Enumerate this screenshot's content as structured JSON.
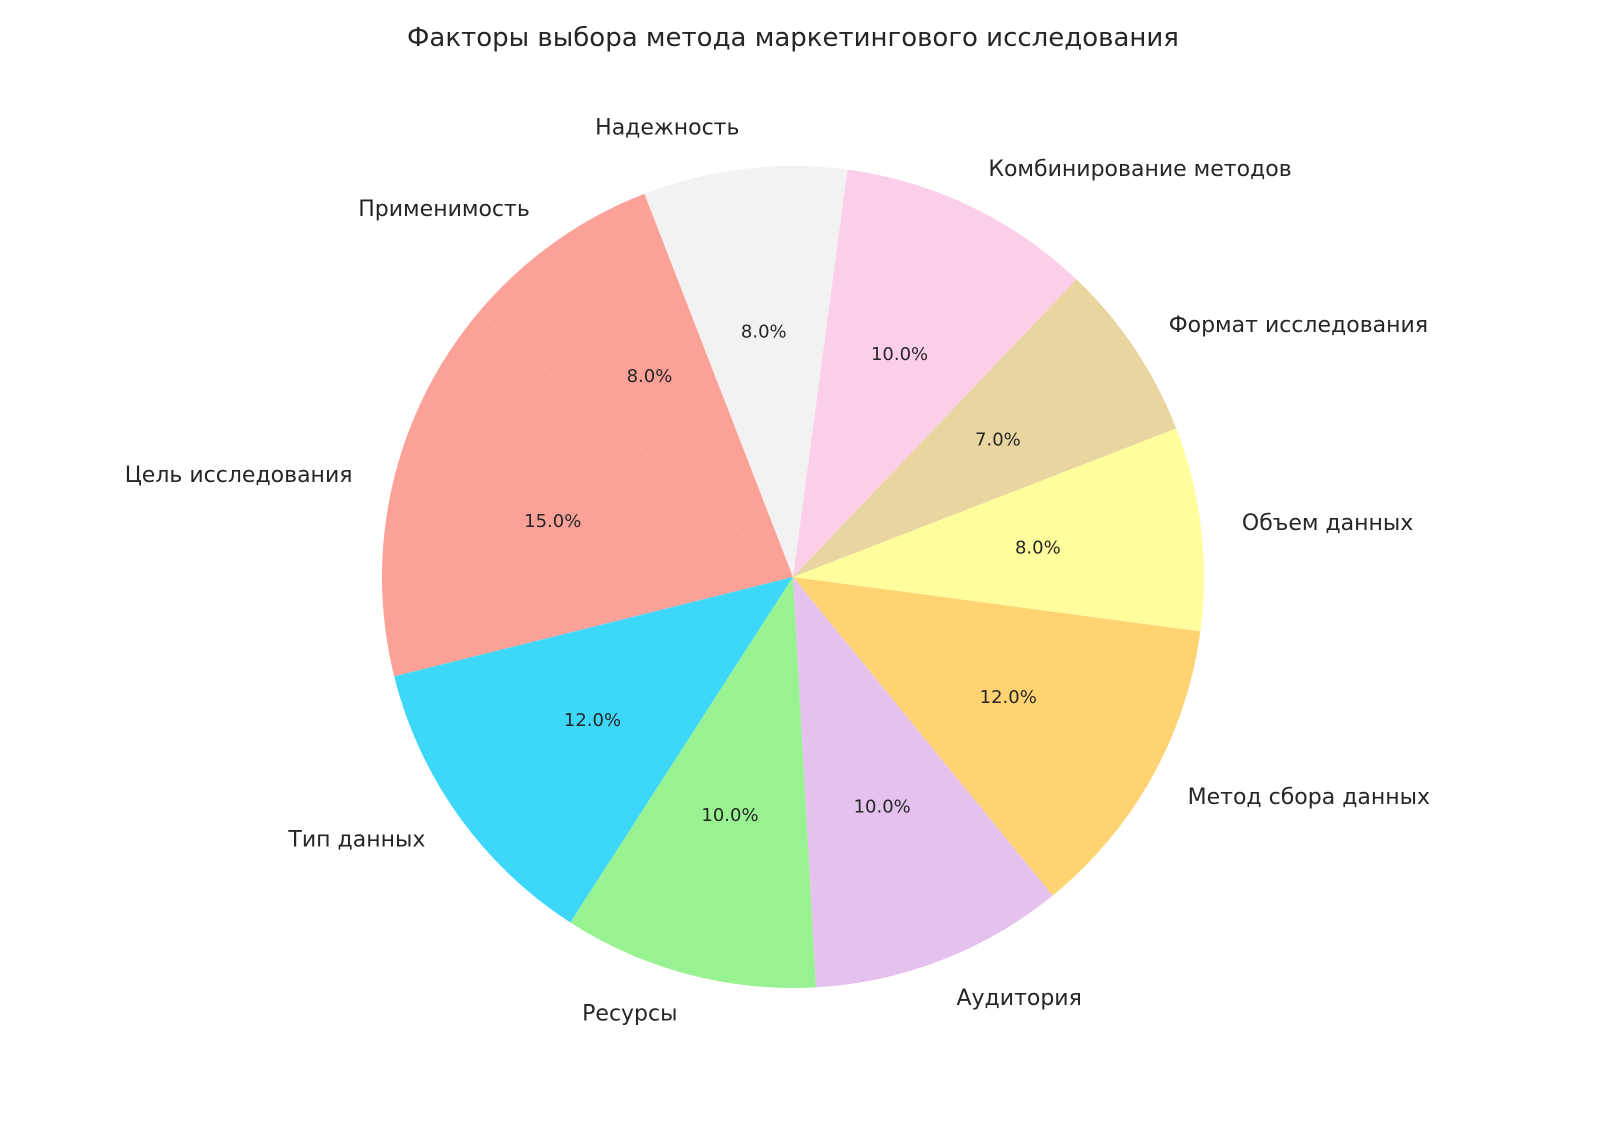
{
  "chart_data": {
    "type": "pie",
    "title": "Факторы выбора метода маркетингового исследования",
    "start_angle_deg": 140,
    "direction": "counterclockwise",
    "categories": [
      "Цель исследования",
      "Тип данных",
      "Ресурсы",
      "Аудитория",
      "Метод сбора данных",
      "Объем данных",
      "Формат исследования",
      "Комбинирование методов",
      "Надежность",
      "Применимость"
    ],
    "values": [
      15,
      12,
      10,
      10,
      12,
      8,
      7,
      10,
      8,
      8
    ],
    "pct_labels": [
      "15.0%",
      "12.0%",
      "10.0%",
      "10.0%",
      "12.0%",
      "8.0%",
      "7.0%",
      "10.0%",
      "8.0%",
      "8.0%"
    ],
    "colors": [
      "#FCA197",
      "#3DD7FA",
      "#99F291",
      "#E5C2EE",
      "#FFD272",
      "#FFFD9C",
      "#E8D5A0",
      "#FCCFE8",
      "#F2F2F2",
      "#FCA197"
    ]
  }
}
